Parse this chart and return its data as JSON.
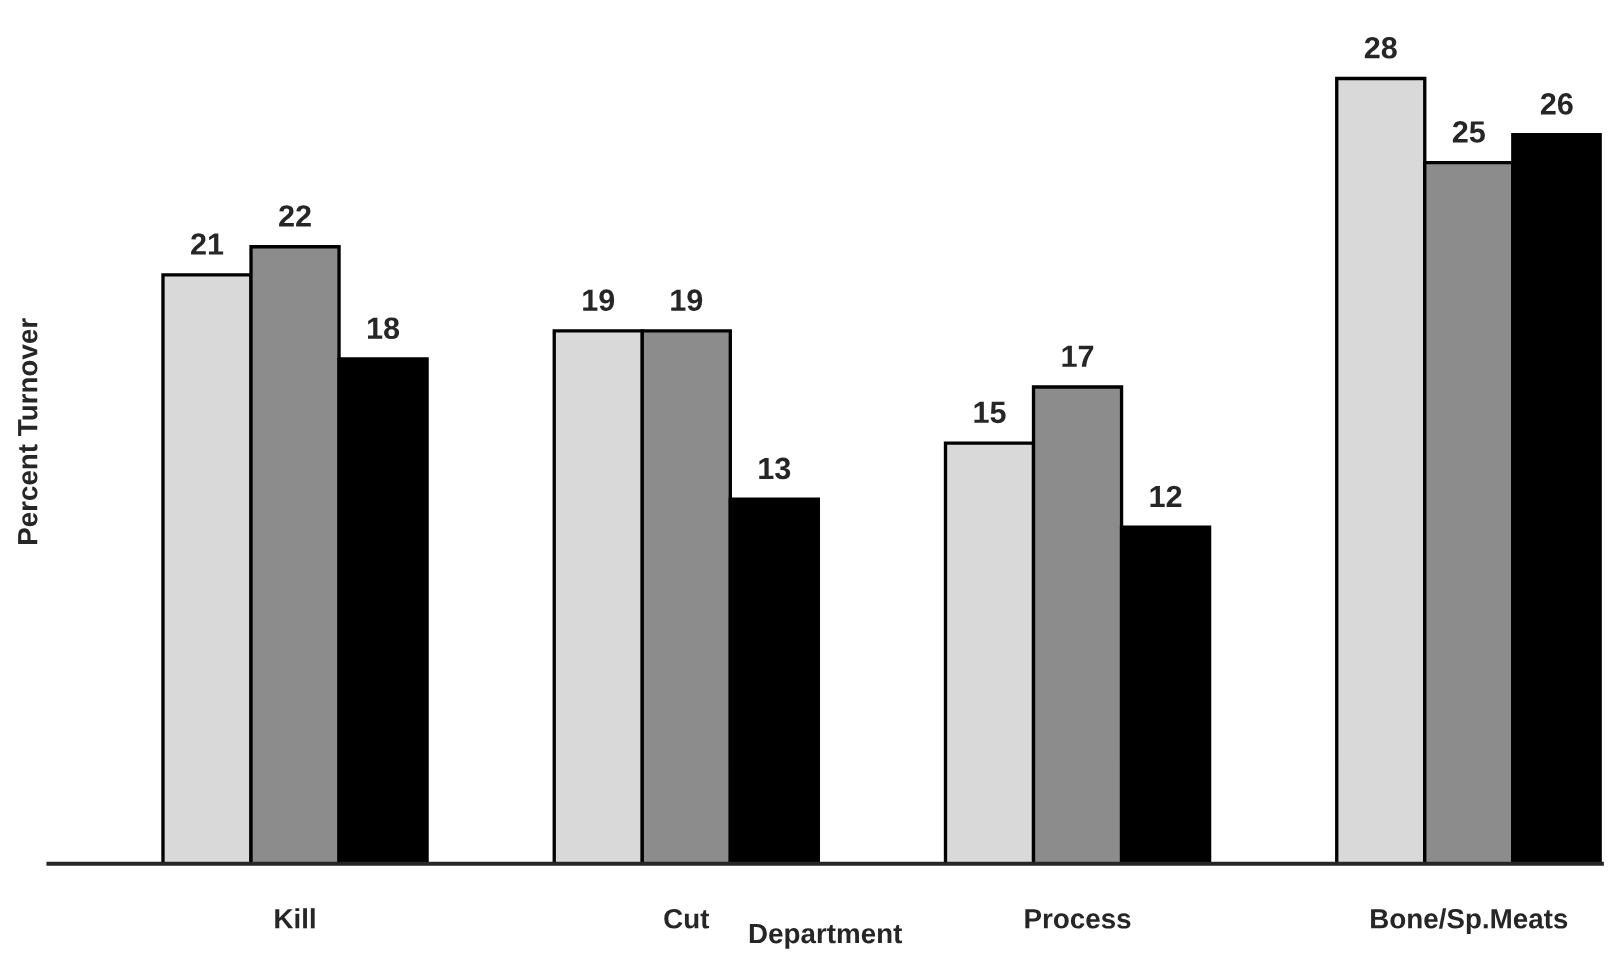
{
  "chart_data": {
    "type": "bar",
    "xlabel": "Department",
    "ylabel": "Percent Turnover",
    "categories": [
      "Kill",
      "Cut",
      "Process",
      "Bone/Sp.Meats"
    ],
    "series": [
      {
        "color": "#d9d9d9",
        "values": [
          21,
          19,
          15,
          28
        ]
      },
      {
        "color": "#8c8c8c",
        "values": [
          22,
          19,
          17,
          25
        ]
      },
      {
        "color": "#000000",
        "values": [
          18,
          13,
          12,
          26
        ]
      }
    ],
    "data_labels": true,
    "grid": false
  }
}
